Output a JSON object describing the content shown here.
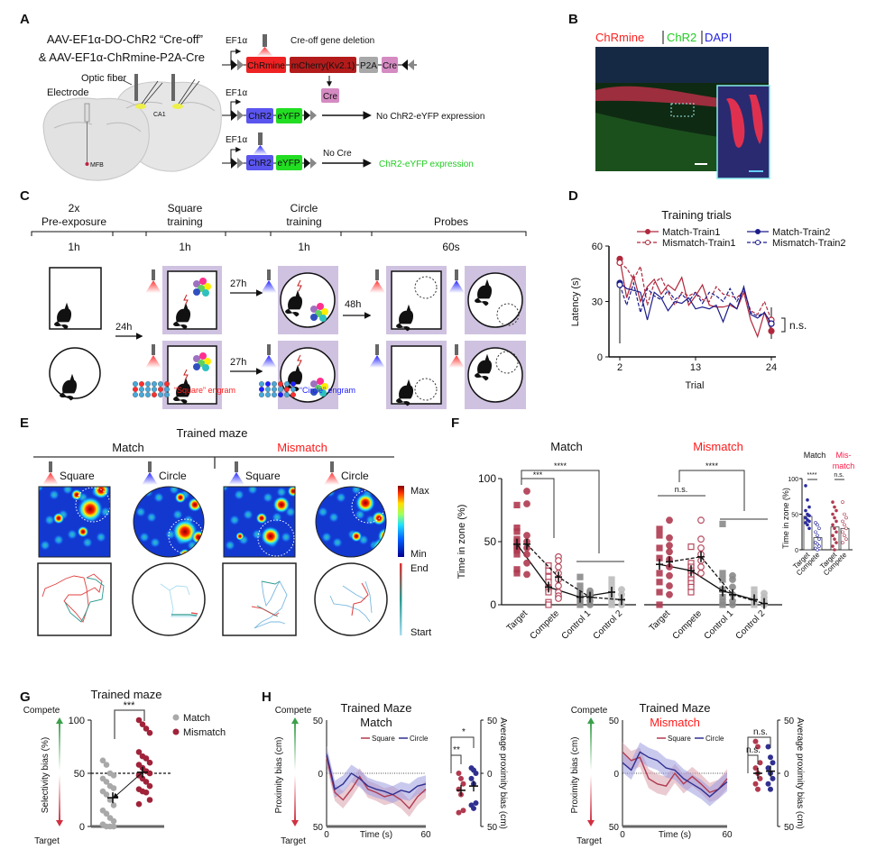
{
  "panel_labels": {
    "A": "A",
    "B": "B",
    "C": "C",
    "D": "D",
    "E": "E",
    "F": "F",
    "G": "G",
    "H": "H"
  },
  "panel_a": {
    "title_line1": "AAV-EF1α-DO-ChR2 “Cre-off”",
    "title_line2": "& AAV-EF1α-ChRmine-P2A-Cre",
    "optic_fiber": "Optic fiber",
    "electrode": "Electrode",
    "ca1": "CA1",
    "mfb": "MFB",
    "promoter": "EF1α",
    "cre_off_deletion": "Cre-off gene deletion",
    "chrmine": "ChRmine",
    "mcherry": "mCherry(Kv2.1)",
    "p2a": "P2A",
    "cre": "Cre",
    "chr2": "ChR2",
    "eyfp": "eYFP",
    "no_expression": "No ChR2-eYFP expression",
    "no_cre": "No Cre",
    "expression": "ChR2-eYFP expression",
    "colors": {
      "chrmine": "#ee2222",
      "mcherry": "#b31b1b",
      "p2a": "#a8a8a8",
      "cre": "#d58ac2",
      "chr2": "#5a55ee",
      "eyfp": "#22dd22",
      "expression_text": "#22cc22"
    }
  },
  "panel_b": {
    "chrmine": "ChRmine",
    "chr2": "ChR2",
    "dapi": "DAPI",
    "colors": {
      "chrmine": "#ff2020",
      "chr2": "#22cc22",
      "dapi": "#2222dd"
    }
  },
  "panel_c": {
    "stages": [
      {
        "title1": "2x",
        "title2": "Pre-exposure",
        "duration": "1h"
      },
      {
        "title1": "Square",
        "title2": "training",
        "duration": "1h"
      },
      {
        "title1": "Circle",
        "title2": "training",
        "duration": "1h"
      },
      {
        "title1": "",
        "title2": "Probes",
        "duration": "60s"
      }
    ],
    "delays": [
      "24h",
      "27h",
      "27h",
      "48h"
    ],
    "square_engram": "“Square” engram",
    "circle_engram": "“Circle” engram"
  },
  "panel_e": {
    "header": "Trained maze",
    "match": "Match",
    "mismatch": "Mismatch",
    "columns": [
      "Square",
      "Circle",
      "Square",
      "Circle"
    ],
    "colorbar_max": "Max",
    "colorbar_min": "Min",
    "trajectory_end": "End",
    "trajectory_start": "Start"
  },
  "chart_data": [
    {
      "type": "line",
      "title": "Training trials",
      "xlabel": "Trial",
      "ylabel": "Latency (s)",
      "ylim": [
        0,
        60
      ],
      "xticks": [
        2,
        13,
        24
      ],
      "yticks": [
        0,
        30,
        60
      ],
      "x": [
        2,
        3,
        4,
        5,
        6,
        7,
        8,
        9,
        10,
        11,
        12,
        13,
        14,
        15,
        16,
        17,
        18,
        19,
        20,
        21,
        22,
        23,
        24
      ],
      "series": [
        {
          "name": "Match-Train1",
          "color": "#b0283c",
          "style": "solid",
          "marker": "filled",
          "values": [
            53,
            32,
            44,
            30,
            38,
            42,
            34,
            39,
            36,
            43,
            28,
            33,
            39,
            28,
            27,
            27,
            28,
            26,
            35,
            20,
            11,
            24,
            14
          ]
        },
        {
          "name": "Mismatch-Train1",
          "color": "#b0283c",
          "style": "dashed",
          "marker": "open",
          "values": [
            51,
            48,
            42,
            49,
            28,
            40,
            43,
            35,
            28,
            35,
            33,
            35,
            31,
            30,
            38,
            34,
            33,
            32,
            36,
            25,
            23,
            30,
            20
          ]
        },
        {
          "name": "Match-Train2",
          "color": "#1c1c8c",
          "style": "solid",
          "marker": "filled",
          "values": [
            40,
            37,
            36,
            35,
            20,
            35,
            32,
            25,
            30,
            29,
            32,
            26,
            27,
            26,
            28,
            19,
            29,
            26,
            38,
            23,
            21,
            24,
            18
          ]
        },
        {
          "name": "Mismatch-Train2",
          "color": "#1c1c8c",
          "style": "dashed",
          "marker": "open",
          "values": [
            39,
            28,
            40,
            24,
            37,
            33,
            31,
            36,
            31,
            34,
            30,
            35,
            29,
            35,
            33,
            30,
            37,
            30,
            37,
            24,
            22,
            24,
            18
          ]
        }
      ],
      "annotation": "n.s."
    },
    {
      "type": "scatter",
      "ylabel": "Time in zone (%)",
      "ylim": [
        0,
        100
      ],
      "yticks": [
        0,
        50,
        100
      ],
      "categories": [
        "Target",
        "Compete",
        "Control 1",
        "Control 2"
      ],
      "category_colors": [
        "#b03a50",
        "#b03a50",
        "#8a8a8a",
        "#bdbdbd"
      ],
      "groups": [
        {
          "title": "Match",
          "title_color": "#111111",
          "series": [
            {
              "marker": "square",
              "means": [
                48,
                14,
                6,
                10
              ],
              "points": [
                [
                  79,
                  61,
                  58,
                  52,
                  50,
                  47,
                  45,
                  43,
                  40,
                  28,
                  25
                ],
                [
                  31,
                  27,
                  22,
                  18,
                  13,
                  10,
                  2,
                  0
                ],
                [
                  22,
                  15,
                  10,
                  5,
                  2,
                  0
                ],
                [
                  20,
                  15,
                  10,
                  5,
                  2,
                  0
                ]
              ]
            },
            {
              "marker": "circle",
              "means": [
                48,
                22,
                6,
                4
              ],
              "points": [
                [
                  90,
                  80,
                  55,
                  50,
                  45,
                  40,
                  33,
                  24
                ],
                [
                  38,
                  35,
                  30,
                  25,
                  20,
                  15,
                  10,
                  7,
                  5
                ],
                [
                  11,
                  9,
                  6,
                  3,
                  0
                ],
                [
                  12,
                  8,
                  4,
                  0
                ]
              ]
            }
          ],
          "significance": [
            "***",
            "****"
          ]
        },
        {
          "title": "Mismatch",
          "title_color": "#ff1a1a",
          "series": [
            {
              "marker": "square",
              "means": [
                32,
                27,
                11,
                4
              ],
              "points": [
                [
                  60,
                  55,
                  45,
                  37,
                  25,
                  18,
                  10,
                  0
                ],
                [
                  46,
                  33,
                  30,
                  27,
                  23,
                  20,
                  17,
                  14,
                  10
                ],
                [
                  64,
                  25,
                  20,
                  12,
                  6,
                  2,
                  0
                ],
                [
                  12,
                  8,
                  4,
                  0
                ]
              ]
            },
            {
              "marker": "circle",
              "means": [
                34,
                38,
                8,
                1
              ],
              "points": [
                [
                  67,
                  53,
                  47,
                  42,
                  36,
                  30,
                  23,
                  15,
                  8
                ],
                [
                  67,
                  52,
                  45,
                  40,
                  35,
                  30,
                  25
                ],
                [
                  23,
                  20,
                  14,
                  8,
                  3,
                  0
                ],
                [
                  9,
                  6,
                  3,
                  0
                ]
              ]
            }
          ],
          "significance": [
            "n.s.",
            "****"
          ]
        }
      ]
    },
    {
      "type": "bar",
      "ylabel": "Time in zone (%)",
      "ylim": [
        0,
        100
      ],
      "yticks": [
        0,
        50,
        100
      ],
      "categories": [
        "Target",
        "Compete"
      ],
      "title_match": "Match",
      "title_mismatch_1": "Mis-",
      "title_mismatch_2": "match",
      "groups": [
        {
          "name": "Match",
          "color": "#2a2aa0",
          "values": [
            47,
            17
          ],
          "points": [
            [
              90,
              70,
              60,
              55,
              50,
              48,
              45,
              42,
              40,
              38,
              35,
              30
            ],
            [
              38,
              35,
              30,
              25,
              20,
              15,
              10,
              8,
              5,
              2,
              0
            ]
          ],
          "significance": "****"
        },
        {
          "name": "Mismatch",
          "color": "#b03a50",
          "values": [
            32,
            30
          ],
          "points": [
            [
              67,
              60,
              55,
              50,
              45,
              40,
              35,
              30,
              25,
              20,
              15,
              10,
              5,
              0
            ],
            [
              67,
              50,
              45,
              40,
              35,
              30,
              25,
              20,
              15,
              10
            ]
          ],
          "significance": "n.s."
        }
      ]
    },
    {
      "type": "scatter",
      "title": "Trained maze",
      "ylabel": "Selectivity bias (%)",
      "ylim": [
        0,
        100
      ],
      "yticks": [
        0,
        50,
        100
      ],
      "reference_line": 50,
      "top_label": "Compete",
      "bottom_label": "Target",
      "series": [
        {
          "name": "Match",
          "color": "#a9a9a9",
          "mean": 27,
          "values": [
            62,
            58,
            50,
            48,
            45,
            42,
            38,
            36,
            33,
            30,
            25,
            20,
            15,
            12,
            8,
            5,
            2,
            0,
            0,
            0
          ]
        },
        {
          "name": "Mismatch",
          "color": "#a0233a",
          "mean": 51,
          "values": [
            100,
            96,
            92,
            88,
            70,
            66,
            64,
            60,
            58,
            55,
            52,
            50,
            48,
            45,
            42,
            38,
            35,
            33,
            32,
            25,
            21
          ]
        }
      ],
      "significance": "***",
      "legend": "top-right"
    },
    {
      "type": "line",
      "title": "Trained Maze",
      "subtitle": "Match",
      "subtitle_color": "#111111",
      "xlabel": "Time (s)",
      "ylabel": "Proximity bias (cm)",
      "right_ylabel": "Average proximity bias (cm)",
      "xlim": [
        0,
        60
      ],
      "xticks": [
        0,
        60
      ],
      "ylim": [
        -50,
        50
      ],
      "ytick_labels": [
        "50",
        "0",
        "50"
      ],
      "top_label": "Compete",
      "bottom_label": "Target",
      "x": [
        0,
        5,
        10,
        15,
        20,
        25,
        30,
        35,
        40,
        45,
        50,
        55,
        60
      ],
      "series": [
        {
          "name": "Square",
          "color": "#b03a50",
          "band": "#d9a0ad",
          "values": [
            15,
            -18,
            -25,
            -15,
            -3,
            -15,
            -18,
            -22,
            -20,
            -25,
            -33,
            -22,
            -15
          ],
          "sem": 8,
          "avg_mean": -16,
          "avg_points": [
            0,
            -5,
            -10,
            -15,
            -20,
            -35,
            -37
          ]
        },
        {
          "name": "Circle",
          "color": "#303090",
          "band": "#9c9ce0",
          "values": [
            18,
            -15,
            -10,
            0,
            -5,
            -12,
            -15,
            -17,
            -20,
            -16,
            -18,
            -12,
            -10
          ],
          "sem": 8,
          "avg_mean": -12,
          "avg_points": [
            5,
            3,
            0,
            -5,
            -10,
            -28,
            -30,
            -33
          ]
        }
      ],
      "significance": [
        "*",
        "**"
      ]
    },
    {
      "type": "line",
      "title": "Trained Maze",
      "subtitle": "Mismatch",
      "subtitle_color": "#ff1a1a",
      "xlabel": "Time (s)",
      "ylabel": "Proximity bias (cm)",
      "right_ylabel": "Average proximity bias (cm)",
      "xlim": [
        0,
        60
      ],
      "xticks": [
        0,
        60
      ],
      "ylim": [
        -50,
        50
      ],
      "ytick_labels": [
        "50",
        "0",
        "50"
      ],
      "top_label": "Compete",
      "bottom_label": "Target",
      "x": [
        0,
        5,
        10,
        15,
        20,
        25,
        30,
        35,
        40,
        45,
        50,
        55,
        60
      ],
      "series": [
        {
          "name": "Square",
          "color": "#b03a50",
          "band": "#d9a0ad",
          "values": [
            20,
            12,
            15,
            -5,
            -10,
            -12,
            0,
            -10,
            -3,
            -10,
            -18,
            -15,
            -5
          ],
          "sem": 9,
          "avg_mean": 0,
          "avg_points": [
            30,
            25,
            10,
            5,
            0,
            -5,
            -10,
            -15
          ]
        },
        {
          "name": "Circle",
          "color": "#303090",
          "band": "#9c9ce0",
          "values": [
            10,
            3,
            20,
            15,
            12,
            5,
            3,
            -5,
            -10,
            -15,
            -22,
            -15,
            -8
          ],
          "sem": 9,
          "avg_mean": 2,
          "avg_points": [
            25,
            15,
            10,
            5,
            0,
            -5,
            -10,
            -15
          ]
        }
      ],
      "significance": [
        "n.s.",
        "n.s."
      ]
    }
  ]
}
